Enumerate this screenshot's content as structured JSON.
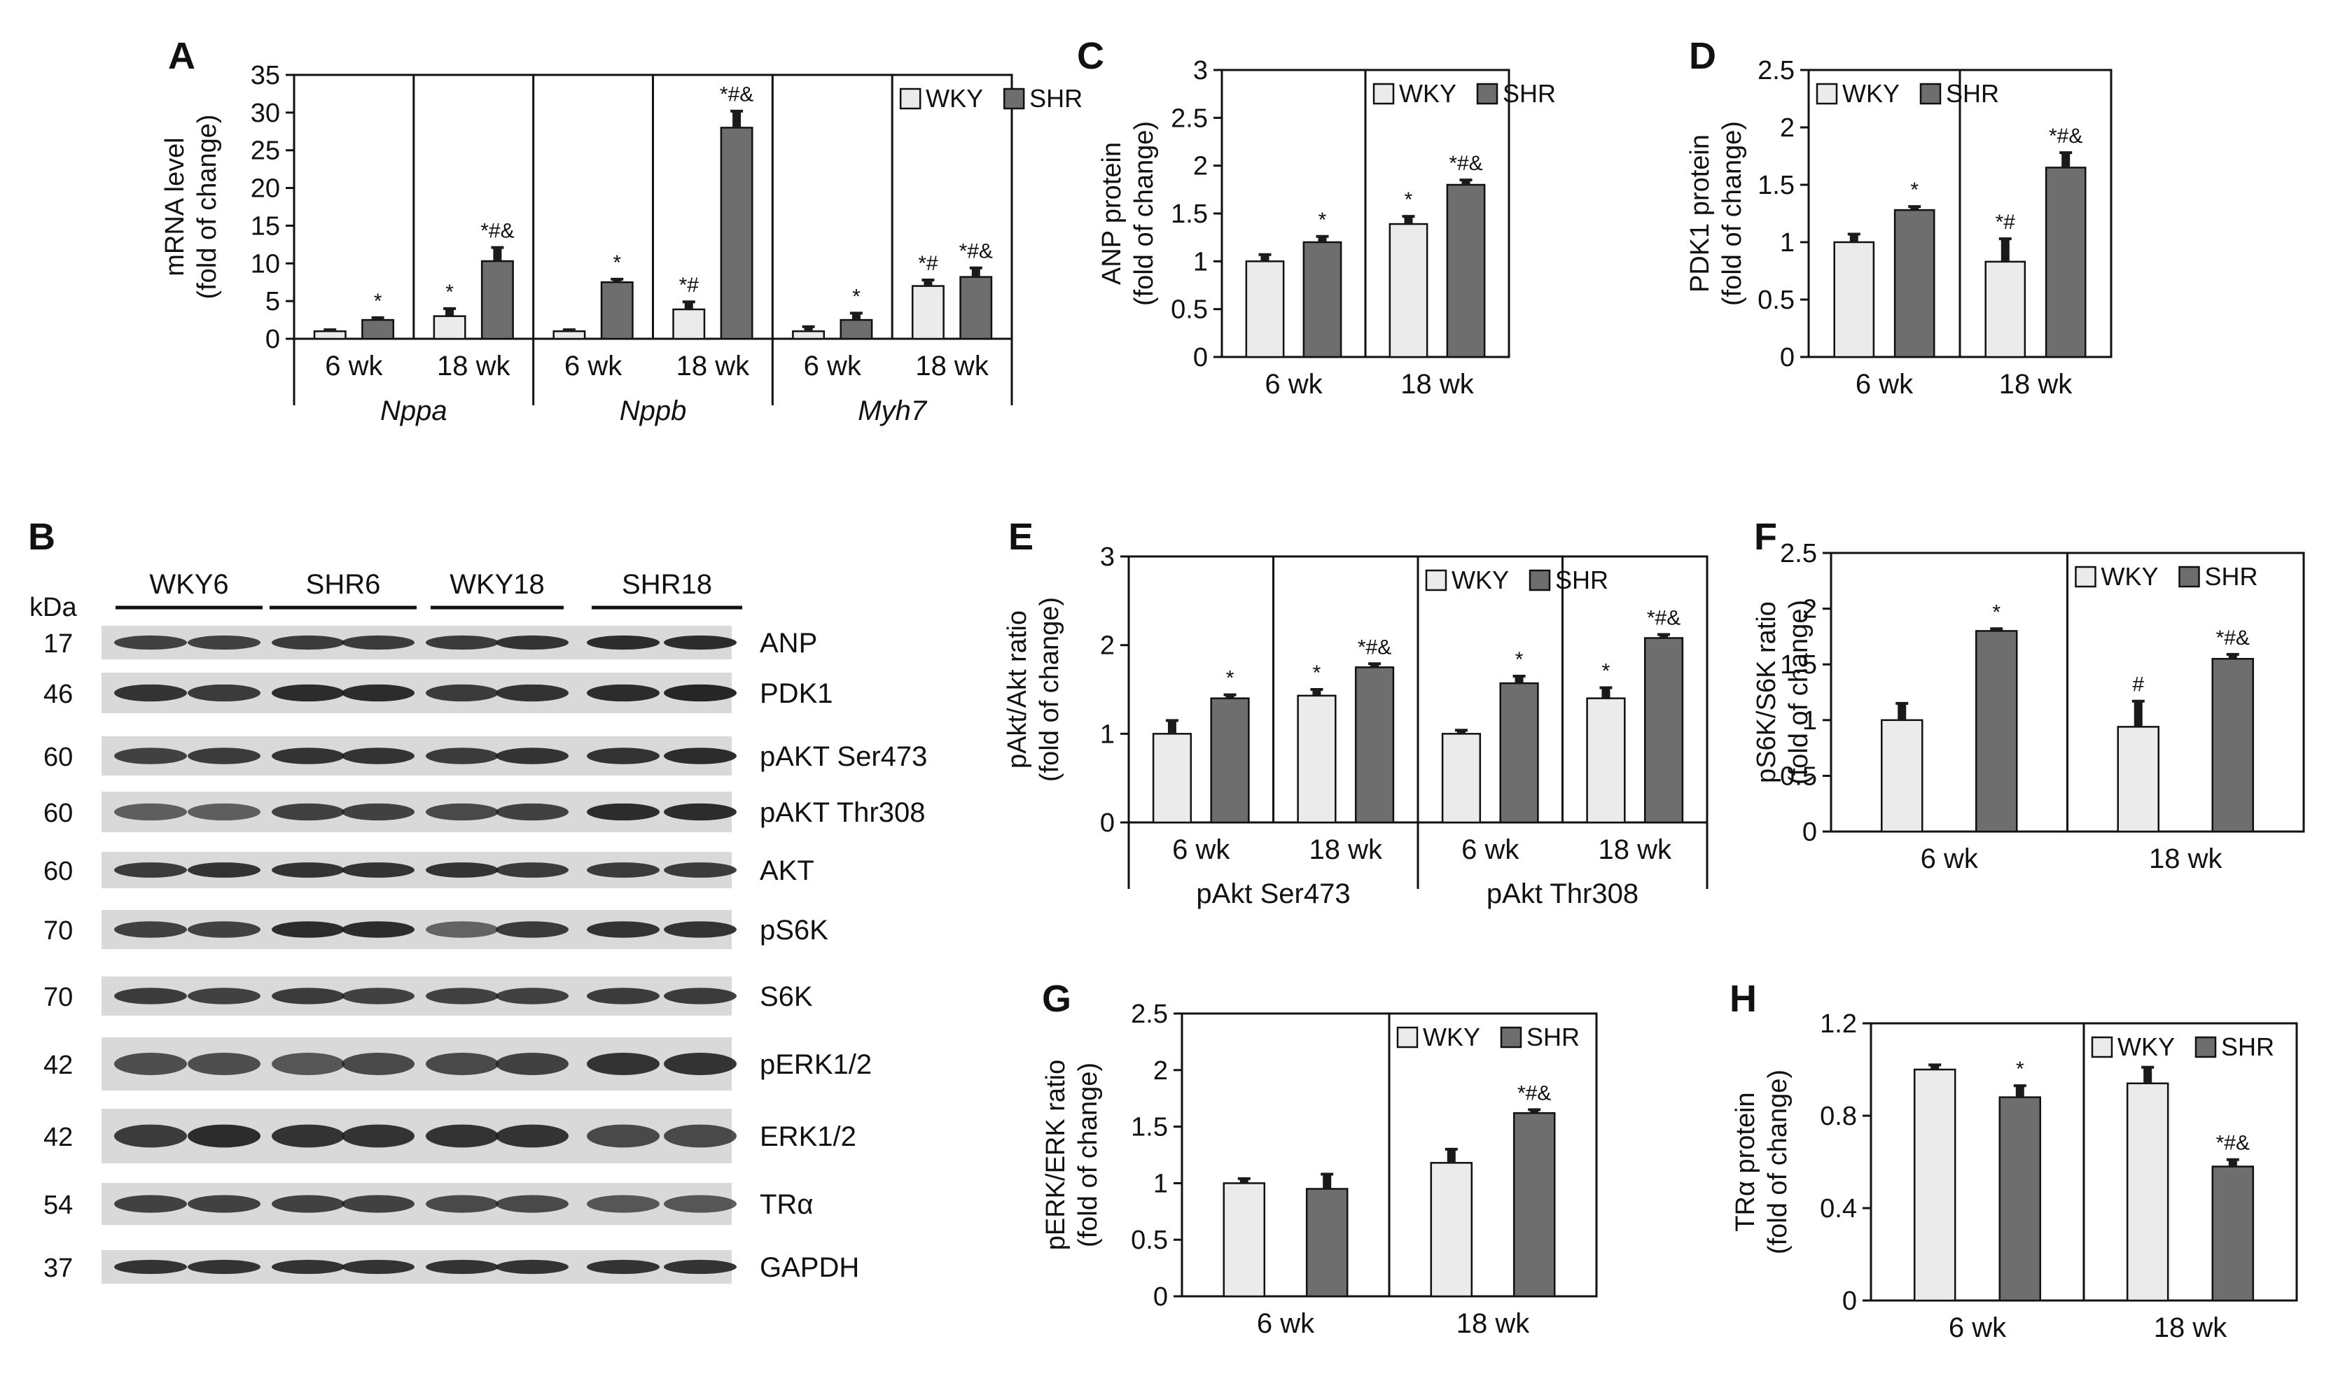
{
  "colors": {
    "wky": "#ebebeb",
    "shr": "#6e6e6e",
    "stroke": "#111111",
    "error": "#1a1a1a",
    "band": "#1e1e1e"
  },
  "chart_data": [
    {
      "id": "A",
      "type": "bar",
      "panel_label": "A",
      "ylabel": [
        "mRNA level",
        "(fold of change)"
      ],
      "ylim": [
        0,
        35
      ],
      "yticks": [
        0,
        5,
        10,
        15,
        20,
        25,
        30,
        35
      ],
      "legend": [
        "WKY",
        "SHR"
      ],
      "legend_group": 5,
      "group_labels": [
        {
          "text": "Nppa",
          "span": [
            0,
            1
          ]
        },
        {
          "text": "Nppb",
          "span": [
            2,
            3
          ]
        },
        {
          "text": "Myh7",
          "span": [
            4,
            5
          ]
        }
      ],
      "groups": [
        {
          "label": "6 wk",
          "values": [
            1,
            2.5
          ],
          "errors": [
            0.2,
            0.3
          ],
          "annot": [
            "",
            "*"
          ]
        },
        {
          "label": "18 wk",
          "values": [
            3,
            10.3
          ],
          "errors": [
            1.0,
            1.8
          ],
          "annot": [
            "*",
            "*#&"
          ]
        },
        {
          "label": "6 wk",
          "values": [
            1,
            7.5
          ],
          "errors": [
            0.2,
            0.4
          ],
          "annot": [
            "",
            "*"
          ]
        },
        {
          "label": "18 wk",
          "values": [
            3.9,
            28
          ],
          "errors": [
            1.0,
            2.2
          ],
          "annot": [
            "*#",
            "*#&"
          ]
        },
        {
          "label": "6 wk",
          "values": [
            1,
            2.5
          ],
          "errors": [
            0.6,
            0.9
          ],
          "annot": [
            "",
            "*"
          ]
        },
        {
          "label": "18 wk",
          "values": [
            7,
            8.2
          ],
          "errors": [
            0.8,
            1.2
          ],
          "annot": [
            "*#",
            "*#&"
          ]
        }
      ]
    },
    {
      "id": "C",
      "type": "bar",
      "panel_label": "C",
      "ylabel": [
        "ANP protein",
        "(fold of change)"
      ],
      "ylim": [
        0,
        3
      ],
      "yticks": [
        0,
        0.5,
        1,
        1.5,
        2,
        2.5,
        3
      ],
      "legend": [
        "WKY",
        "SHR"
      ],
      "legend_group": 1,
      "groups": [
        {
          "label": "6 wk",
          "values": [
            1,
            1.2
          ],
          "errors": [
            0.07,
            0.06
          ],
          "annot": [
            "",
            "*"
          ]
        },
        {
          "label": "18 wk",
          "values": [
            1.39,
            1.8
          ],
          "errors": [
            0.08,
            0.05
          ],
          "annot": [
            "*",
            "*#&"
          ]
        }
      ]
    },
    {
      "id": "D",
      "type": "bar",
      "panel_label": "D",
      "ylabel": [
        "PDK1 protein",
        "(fold of change)"
      ],
      "ylim": [
        0,
        2.5
      ],
      "yticks": [
        0,
        0.5,
        1,
        1.5,
        2,
        2.5
      ],
      "legend": [
        "WKY",
        "SHR"
      ],
      "legend_group": 0,
      "groups": [
        {
          "label": "6 wk",
          "values": [
            1,
            1.28
          ],
          "errors": [
            0.07,
            0.03
          ],
          "annot": [
            "",
            "*"
          ]
        },
        {
          "label": "18 wk",
          "values": [
            0.83,
            1.65
          ],
          "errors": [
            0.2,
            0.13
          ],
          "annot": [
            "*#",
            "*#&"
          ]
        }
      ]
    },
    {
      "id": "E",
      "type": "bar",
      "panel_label": "E",
      "ylabel": [
        "pAkt/Akt ratio",
        "(fold of change)"
      ],
      "ylim": [
        0,
        3
      ],
      "yticks": [
        0,
        1,
        2,
        3
      ],
      "legend": [
        "WKY",
        "SHR"
      ],
      "legend_group": 2,
      "group_labels": [
        {
          "text": "pAkt Ser473",
          "span": [
            0,
            1
          ]
        },
        {
          "text": "pAkt Thr308",
          "span": [
            2,
            3
          ]
        }
      ],
      "groups": [
        {
          "label": "6 wk",
          "values": [
            1,
            1.4
          ],
          "errors": [
            0.15,
            0.04
          ],
          "annot": [
            "",
            "*"
          ]
        },
        {
          "label": "18 wk",
          "values": [
            1.43,
            1.75
          ],
          "errors": [
            0.07,
            0.04
          ],
          "annot": [
            "*",
            "*#&"
          ]
        },
        {
          "label": "6 wk",
          "values": [
            1,
            1.57
          ],
          "errors": [
            0.04,
            0.08
          ],
          "annot": [
            "",
            "*"
          ]
        },
        {
          "label": "18 wk",
          "values": [
            1.4,
            2.08
          ],
          "errors": [
            0.12,
            0.04
          ],
          "annot": [
            "*",
            "*#&"
          ]
        }
      ]
    },
    {
      "id": "F",
      "type": "bar",
      "panel_label": "F",
      "ylabel": [
        "pS6K/S6K ratio",
        "(fold of change)"
      ],
      "ylim": [
        0,
        2.5
      ],
      "yticks": [
        0,
        0.5,
        1,
        1.5,
        2,
        2.5
      ],
      "legend": [
        "WKY",
        "SHR"
      ],
      "legend_group": 1,
      "groups": [
        {
          "label": "6 wk",
          "values": [
            1,
            1.8
          ],
          "errors": [
            0.15,
            0.02
          ],
          "annot": [
            "",
            "*"
          ]
        },
        {
          "label": "18 wk",
          "values": [
            0.94,
            1.55
          ],
          "errors": [
            0.23,
            0.04
          ],
          "annot": [
            "#",
            "*#&"
          ]
        }
      ]
    },
    {
      "id": "G",
      "type": "bar",
      "panel_label": "G",
      "ylabel": [
        "pERK/ERK ratio",
        "(fold of change)"
      ],
      "ylim": [
        0,
        2.5
      ],
      "yticks": [
        0,
        0.5,
        1,
        1.5,
        2,
        2.5
      ],
      "legend": [
        "WKY",
        "SHR"
      ],
      "legend_group": 1,
      "groups": [
        {
          "label": "6 wk",
          "values": [
            1,
            0.95
          ],
          "errors": [
            0.04,
            0.13
          ],
          "annot": [
            "",
            ""
          ]
        },
        {
          "label": "18 wk",
          "values": [
            1.18,
            1.62
          ],
          "errors": [
            0.12,
            0.03
          ],
          "annot": [
            "",
            "*#&"
          ]
        }
      ]
    },
    {
      "id": "H",
      "type": "bar",
      "panel_label": "H",
      "ylabel": [
        "TRα protein",
        "(fold of change)"
      ],
      "ylim": [
        0,
        1.2
      ],
      "yticks": [
        0,
        0.4,
        0.8,
        1.2
      ],
      "legend": [
        "WKY",
        "SHR"
      ],
      "legend_group": 1,
      "groups": [
        {
          "label": "6 wk",
          "values": [
            1,
            0.88
          ],
          "errors": [
            0.02,
            0.05
          ],
          "annot": [
            "",
            "*"
          ]
        },
        {
          "label": "18 wk",
          "values": [
            0.94,
            0.58
          ],
          "errors": [
            0.07,
            0.03
          ],
          "annot": [
            "",
            "*#&"
          ]
        }
      ]
    }
  ],
  "blot": {
    "panel_label": "B",
    "unit_label": "kDa",
    "lane_groups": [
      "WKY6",
      "SHR6",
      "WKY18",
      "SHR18"
    ],
    "rows": [
      {
        "kda": "17",
        "label": "ANP",
        "intensity": [
          0.75,
          0.75,
          0.8,
          0.8,
          0.8,
          0.85,
          0.9,
          0.9
        ]
      },
      {
        "kda": "46",
        "label": "PDK1",
        "intensity": [
          0.85,
          0.8,
          0.9,
          0.9,
          0.8,
          0.85,
          0.9,
          0.95
        ]
      },
      {
        "kda": "60",
        "label": "pAKT Ser473",
        "intensity": [
          0.75,
          0.8,
          0.85,
          0.85,
          0.8,
          0.85,
          0.85,
          0.9
        ]
      },
      {
        "kda": "60",
        "label": "pAKT Thr308",
        "intensity": [
          0.55,
          0.55,
          0.75,
          0.75,
          0.7,
          0.75,
          0.9,
          0.9
        ]
      },
      {
        "kda": "60",
        "label": "AKT",
        "intensity": [
          0.8,
          0.85,
          0.85,
          0.85,
          0.85,
          0.8,
          0.8,
          0.8
        ]
      },
      {
        "kda": "70",
        "label": "pS6K",
        "intensity": [
          0.75,
          0.75,
          0.9,
          0.9,
          0.5,
          0.8,
          0.85,
          0.85
        ]
      },
      {
        "kda": "70",
        "label": "S6K",
        "intensity": [
          0.8,
          0.75,
          0.8,
          0.75,
          0.75,
          0.75,
          0.8,
          0.8
        ]
      },
      {
        "kda": "42",
        "label": "pERK1/2",
        "intensity": [
          0.65,
          0.65,
          0.6,
          0.7,
          0.7,
          0.75,
          0.85,
          0.85
        ]
      },
      {
        "kda": "42",
        "label": "ERK1/2",
        "intensity": [
          0.8,
          0.9,
          0.85,
          0.85,
          0.85,
          0.85,
          0.7,
          0.7
        ]
      },
      {
        "kda": "54",
        "label": "TRα",
        "intensity": [
          0.75,
          0.75,
          0.75,
          0.75,
          0.7,
          0.7,
          0.6,
          0.6
        ]
      },
      {
        "kda": "37",
        "label": "GAPDH",
        "intensity": [
          0.85,
          0.85,
          0.85,
          0.85,
          0.85,
          0.85,
          0.85,
          0.85
        ]
      }
    ]
  }
}
